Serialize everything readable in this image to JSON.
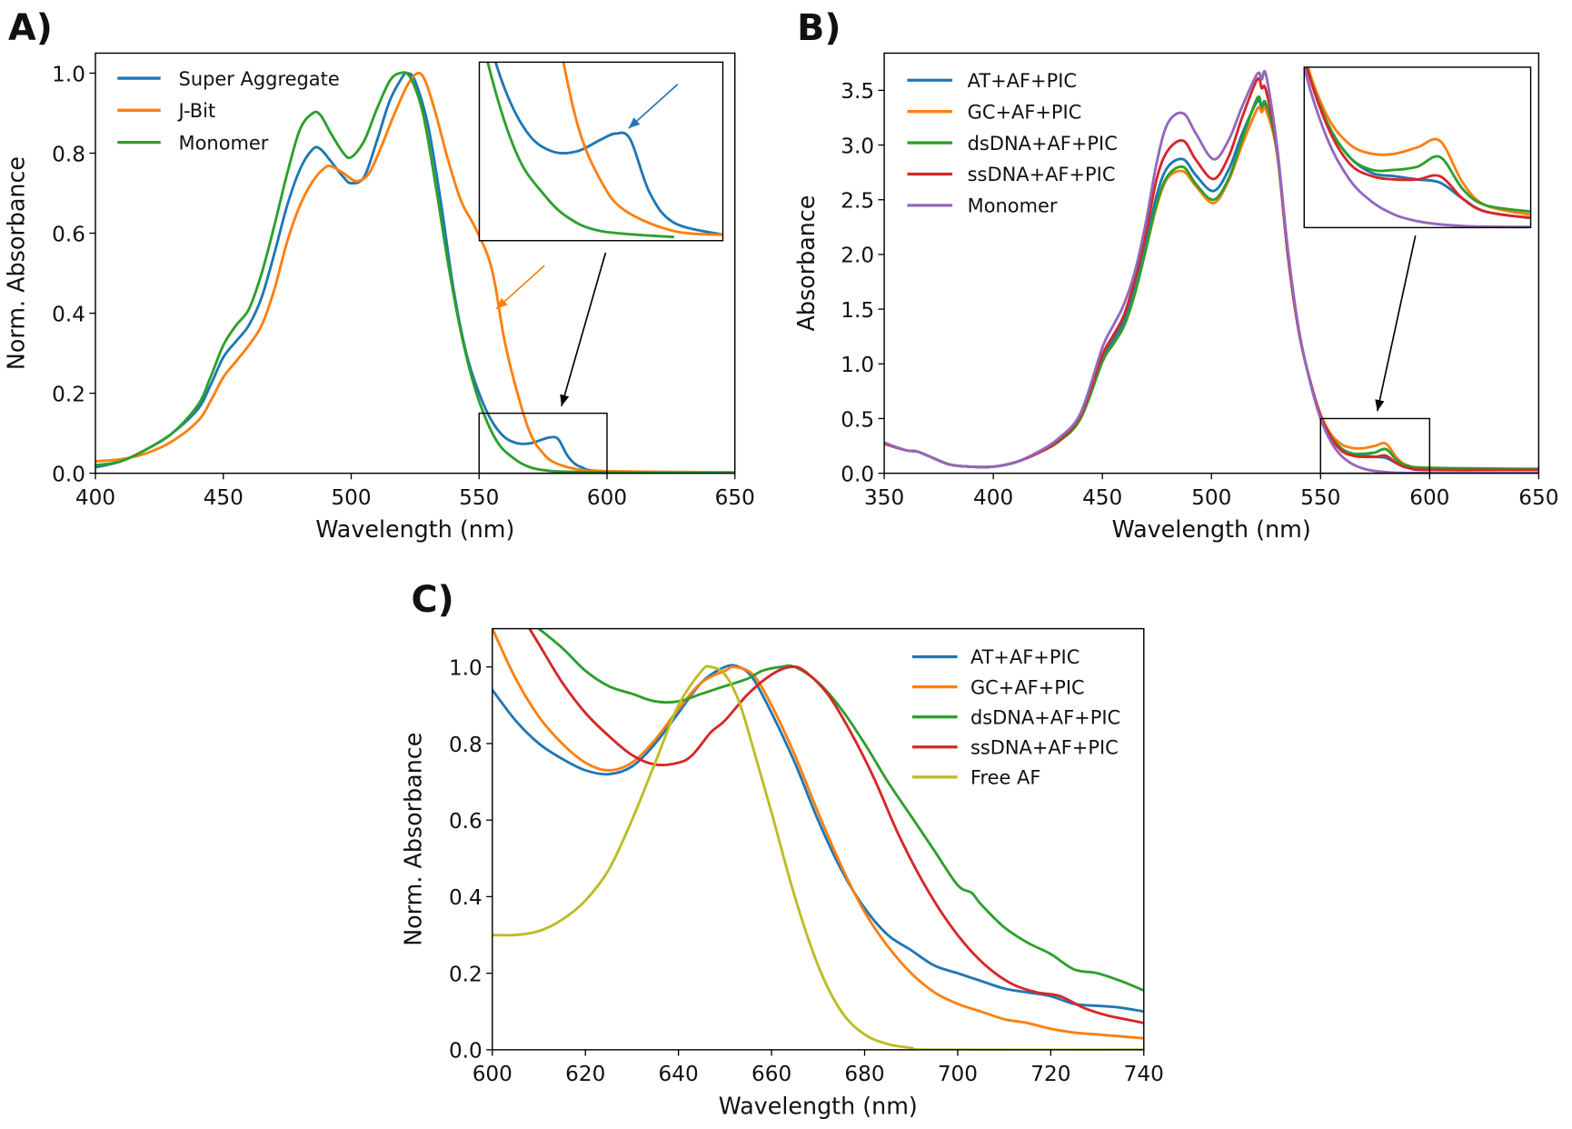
{
  "chart_data": [
    {
      "panel_label": "A)",
      "type": "line",
      "xlabel": "Wavelength (nm)",
      "ylabel": "Norm. Absorbance",
      "xlim": [
        400,
        650
      ],
      "ylim": [
        0,
        1.05
      ],
      "xticks": [
        400,
        450,
        500,
        550,
        600,
        650
      ],
      "xtick_labels": [
        "400",
        "450",
        "500",
        "550",
        "600",
        "650"
      ],
      "yticks": [
        0,
        0.2,
        0.4,
        0.6,
        0.8,
        1.0
      ],
      "ytick_labels": [
        "0.0",
        "0.2",
        "0.4",
        "0.6",
        "0.8",
        "1.0"
      ],
      "legend": "top-left",
      "grid": false,
      "zoom_region": {
        "xlim": [
          550,
          600
        ],
        "ylim": [
          0,
          0.15
        ]
      },
      "inset": {
        "xlim": [
          550,
          600
        ],
        "ylim": [
          0,
          0.15
        ],
        "placement": "top-right"
      },
      "series": [
        {
          "name": "Super Aggregate",
          "color": "#1f77b4",
          "x": [
            400,
            410,
            420,
            430,
            440,
            445,
            450,
            455,
            460,
            465,
            470,
            475,
            480,
            485,
            488,
            492,
            497,
            500,
            505,
            510,
            515,
            520,
            522,
            525,
            530,
            535,
            540,
            545,
            550,
            555,
            560,
            565,
            570,
            575,
            578,
            581,
            585,
            590,
            600,
            650
          ],
          "y": [
            0.015,
            0.03,
            0.06,
            0.1,
            0.16,
            0.22,
            0.29,
            0.33,
            0.37,
            0.44,
            0.55,
            0.67,
            0.76,
            0.81,
            0.81,
            0.78,
            0.74,
            0.725,
            0.74,
            0.83,
            0.93,
            0.99,
            1.0,
            0.98,
            0.87,
            0.68,
            0.46,
            0.3,
            0.2,
            0.13,
            0.09,
            0.075,
            0.075,
            0.085,
            0.09,
            0.085,
            0.04,
            0.015,
            0.005,
            0.002
          ]
        },
        {
          "name": "J-Bit",
          "color": "#ff7f0e",
          "x": [
            400,
            410,
            420,
            430,
            440,
            445,
            450,
            455,
            460,
            465,
            470,
            475,
            480,
            485,
            490,
            493,
            497,
            502,
            507,
            512,
            517,
            522,
            526,
            529,
            533,
            538,
            543,
            548,
            553,
            556,
            560,
            565,
            570,
            575,
            580,
            590,
            600,
            650
          ],
          "y": [
            0.03,
            0.035,
            0.05,
            0.08,
            0.13,
            0.18,
            0.24,
            0.28,
            0.32,
            0.37,
            0.46,
            0.58,
            0.67,
            0.73,
            0.765,
            0.765,
            0.75,
            0.73,
            0.75,
            0.82,
            0.9,
            0.97,
            1.0,
            0.98,
            0.9,
            0.78,
            0.68,
            0.62,
            0.55,
            0.48,
            0.33,
            0.2,
            0.1,
            0.05,
            0.025,
            0.008,
            0.005,
            0.002
          ]
        },
        {
          "name": "Monomer",
          "color": "#2ca02c",
          "x": [
            400,
            410,
            420,
            430,
            440,
            445,
            450,
            455,
            460,
            465,
            470,
            475,
            480,
            485,
            488,
            492,
            497,
            500,
            505,
            510,
            515,
            519,
            523,
            528,
            533,
            538,
            543,
            548,
            553,
            558,
            563,
            568,
            575,
            590,
            650
          ],
          "y": [
            0.02,
            0.03,
            0.06,
            0.1,
            0.17,
            0.24,
            0.32,
            0.37,
            0.41,
            0.5,
            0.62,
            0.75,
            0.86,
            0.9,
            0.895,
            0.85,
            0.8,
            0.79,
            0.83,
            0.91,
            0.98,
            1.0,
            0.99,
            0.9,
            0.72,
            0.52,
            0.35,
            0.22,
            0.13,
            0.07,
            0.04,
            0.02,
            0.008,
            0.003,
            0.001
          ]
        }
      ]
    },
    {
      "panel_label": "B)",
      "type": "line",
      "xlabel": "Wavelength (nm)",
      "ylabel": "Absorbance",
      "xlim": [
        350,
        650
      ],
      "ylim": [
        0,
        3.84
      ],
      "xticks": [
        350,
        400,
        450,
        500,
        550,
        600,
        650
      ],
      "xtick_labels": [
        "350",
        "400",
        "450",
        "500",
        "550",
        "600",
        "650"
      ],
      "yticks": [
        0,
        0.5,
        1.0,
        1.5,
        2.0,
        2.5,
        3.0,
        3.5
      ],
      "ytick_labels": [
        "0.0",
        "0.5",
        "1.0",
        "1.5",
        "2.0",
        "2.5",
        "3.0",
        "3.5"
      ],
      "legend": "top-left",
      "grid": false,
      "zoom_region": {
        "xlim": [
          550,
          600
        ],
        "ylim": [
          0,
          0.5
        ]
      },
      "inset": {
        "xlim": [
          550,
          600
        ],
        "ylim": [
          0,
          0.5
        ],
        "placement": "top-right"
      },
      "shared_x": [
        350,
        360,
        365,
        370,
        380,
        390,
        400,
        410,
        420,
        430,
        440,
        450,
        455,
        460,
        465,
        470,
        475,
        480,
        487,
        493,
        501,
        508,
        514,
        521,
        523,
        525,
        530,
        535,
        540,
        545,
        550,
        555,
        560,
        565,
        570,
        575,
        580,
        585,
        590,
        600,
        650
      ],
      "series": [
        {
          "name": "AT+AF+PIC",
          "color": "#1f77b4",
          "y": [
            0.27,
            0.21,
            0.2,
            0.16,
            0.08,
            0.06,
            0.06,
            0.1,
            0.18,
            0.3,
            0.52,
            1.05,
            1.22,
            1.4,
            1.7,
            2.1,
            2.55,
            2.8,
            2.87,
            2.72,
            2.58,
            2.78,
            3.1,
            3.4,
            3.34,
            3.36,
            2.95,
            2.0,
            1.3,
            0.86,
            0.53,
            0.33,
            0.22,
            0.17,
            0.16,
            0.15,
            0.14,
            0.09,
            0.05,
            0.03,
            0.03
          ]
        },
        {
          "name": "GC+AF+PIC",
          "color": "#ff7f0e",
          "y": [
            0.27,
            0.21,
            0.2,
            0.16,
            0.08,
            0.06,
            0.06,
            0.1,
            0.18,
            0.29,
            0.5,
            1.02,
            1.18,
            1.35,
            1.65,
            2.05,
            2.45,
            2.7,
            2.76,
            2.62,
            2.47,
            2.68,
            3.0,
            3.33,
            3.3,
            3.32,
            2.93,
            2.0,
            1.3,
            0.86,
            0.54,
            0.35,
            0.26,
            0.23,
            0.23,
            0.25,
            0.27,
            0.14,
            0.07,
            0.04,
            0.04
          ]
        },
        {
          "name": "dsDNA+AF+PIC",
          "color": "#2ca02c",
          "y": [
            0.27,
            0.21,
            0.2,
            0.16,
            0.08,
            0.06,
            0.06,
            0.1,
            0.18,
            0.29,
            0.5,
            1.02,
            1.18,
            1.35,
            1.65,
            2.05,
            2.47,
            2.72,
            2.8,
            2.64,
            2.5,
            2.7,
            3.05,
            3.43,
            3.35,
            3.38,
            2.95,
            2.0,
            1.3,
            0.86,
            0.53,
            0.33,
            0.22,
            0.18,
            0.18,
            0.19,
            0.22,
            0.12,
            0.07,
            0.05,
            0.04
          ]
        },
        {
          "name": "ssDNA+AF+PIC",
          "color": "#d62728",
          "y": [
            0.27,
            0.21,
            0.2,
            0.16,
            0.08,
            0.06,
            0.06,
            0.1,
            0.18,
            0.3,
            0.53,
            1.08,
            1.26,
            1.45,
            1.78,
            2.2,
            2.7,
            2.95,
            3.04,
            2.86,
            2.69,
            2.9,
            3.25,
            3.6,
            3.52,
            3.5,
            2.98,
            2.0,
            1.3,
            0.86,
            0.53,
            0.32,
            0.2,
            0.16,
            0.15,
            0.15,
            0.16,
            0.09,
            0.05,
            0.03,
            0.03
          ]
        },
        {
          "name": "Monomer",
          "color": "#9467bd",
          "y": [
            0.28,
            0.21,
            0.2,
            0.16,
            0.08,
            0.06,
            0.06,
            0.1,
            0.19,
            0.32,
            0.55,
            1.15,
            1.35,
            1.55,
            1.85,
            2.3,
            2.85,
            3.2,
            3.29,
            3.1,
            2.87,
            3.05,
            3.35,
            3.65,
            3.6,
            3.64,
            3.0,
            2.05,
            1.32,
            0.85,
            0.5,
            0.28,
            0.15,
            0.08,
            0.04,
            0.02,
            0.01,
            0.005,
            0.003,
            0.002,
            0.002
          ]
        }
      ]
    },
    {
      "panel_label": "C)",
      "type": "line",
      "xlabel": "Wavelength (nm)",
      "ylabel": "Norm. Absorbance",
      "xlim": [
        600,
        740
      ],
      "ylim": [
        0,
        1.1
      ],
      "xticks": [
        600,
        620,
        640,
        660,
        680,
        700,
        720,
        740
      ],
      "xtick_labels": [
        "600",
        "620",
        "640",
        "660",
        "680",
        "700",
        "720",
        "740"
      ],
      "yticks": [
        0,
        0.2,
        0.4,
        0.6,
        0.8,
        1.0
      ],
      "ytick_labels": [
        "0.0",
        "0.2",
        "0.4",
        "0.6",
        "0.8",
        "1.0"
      ],
      "legend": "top-right",
      "grid": false,
      "series": [
        {
          "name": "AT+AF+PIC",
          "color": "#1f77b4",
          "x": [
            600,
            605,
            610,
            615,
            620,
            625,
            630,
            635,
            640,
            645,
            650,
            653,
            656,
            660,
            665,
            670,
            675,
            680,
            685,
            690,
            695,
            700,
            705,
            710,
            715,
            720,
            725,
            730,
            735,
            740
          ],
          "y": [
            0.94,
            0.86,
            0.8,
            0.76,
            0.73,
            0.72,
            0.74,
            0.8,
            0.88,
            0.96,
            1.0,
            1.0,
            0.97,
            0.88,
            0.75,
            0.6,
            0.47,
            0.37,
            0.3,
            0.26,
            0.22,
            0.2,
            0.18,
            0.16,
            0.15,
            0.14,
            0.12,
            0.115,
            0.11,
            0.1
          ]
        },
        {
          "name": "GC+AF+PIC",
          "color": "#ff7f0e",
          "x": [
            600,
            605,
            610,
            615,
            620,
            625,
            630,
            635,
            640,
            645,
            650,
            652,
            656,
            660,
            665,
            670,
            675,
            680,
            685,
            690,
            695,
            700,
            705,
            710,
            715,
            720,
            725,
            730,
            735,
            740
          ],
          "y": [
            1.1,
            0.97,
            0.87,
            0.8,
            0.75,
            0.73,
            0.75,
            0.81,
            0.89,
            0.96,
            0.99,
            1.0,
            0.98,
            0.9,
            0.77,
            0.62,
            0.48,
            0.36,
            0.27,
            0.2,
            0.15,
            0.12,
            0.1,
            0.08,
            0.07,
            0.055,
            0.045,
            0.04,
            0.035,
            0.03
          ]
        },
        {
          "name": "dsDNA+AF+PIC",
          "color": "#2ca02c",
          "x": [
            610,
            615,
            620,
            625,
            630,
            635,
            640,
            645,
            650,
            655,
            658,
            662,
            665,
            670,
            675,
            680,
            685,
            690,
            695,
            700,
            703,
            705,
            710,
            715,
            720,
            725,
            730,
            735,
            740
          ],
          "y": [
            1.1,
            1.05,
            0.99,
            0.95,
            0.93,
            0.91,
            0.91,
            0.93,
            0.95,
            0.97,
            0.99,
            1.0,
            1.0,
            0.96,
            0.89,
            0.8,
            0.7,
            0.61,
            0.52,
            0.43,
            0.41,
            0.38,
            0.32,
            0.28,
            0.25,
            0.21,
            0.2,
            0.18,
            0.155
          ]
        },
        {
          "name": "ssDNA+AF+PIC",
          "color": "#d62728",
          "x": [
            608,
            610,
            615,
            620,
            625,
            630,
            635,
            640,
            643,
            647,
            650,
            655,
            660,
            664,
            667,
            672,
            677,
            682,
            687,
            692,
            697,
            702,
            707,
            712,
            717,
            722,
            727,
            732,
            736,
            740
          ],
          "y": [
            1.1,
            1.06,
            0.96,
            0.88,
            0.82,
            0.77,
            0.745,
            0.75,
            0.77,
            0.83,
            0.86,
            0.93,
            0.98,
            1.0,
            0.99,
            0.93,
            0.83,
            0.71,
            0.57,
            0.45,
            0.35,
            0.27,
            0.21,
            0.17,
            0.15,
            0.14,
            0.11,
            0.09,
            0.08,
            0.07
          ]
        },
        {
          "name": "Free AF",
          "color": "#bcbd22",
          "x": [
            600,
            605,
            610,
            615,
            620,
            625,
            630,
            635,
            640,
            645,
            647,
            650,
            653,
            656,
            660,
            665,
            670,
            675,
            680,
            685,
            690,
            695,
            740
          ],
          "y": [
            0.3,
            0.3,
            0.31,
            0.34,
            0.39,
            0.47,
            0.6,
            0.75,
            0.9,
            0.99,
            1.0,
            0.98,
            0.91,
            0.79,
            0.62,
            0.4,
            0.22,
            0.1,
            0.04,
            0.015,
            0.005,
            0.0,
            0.0
          ]
        }
      ]
    }
  ]
}
